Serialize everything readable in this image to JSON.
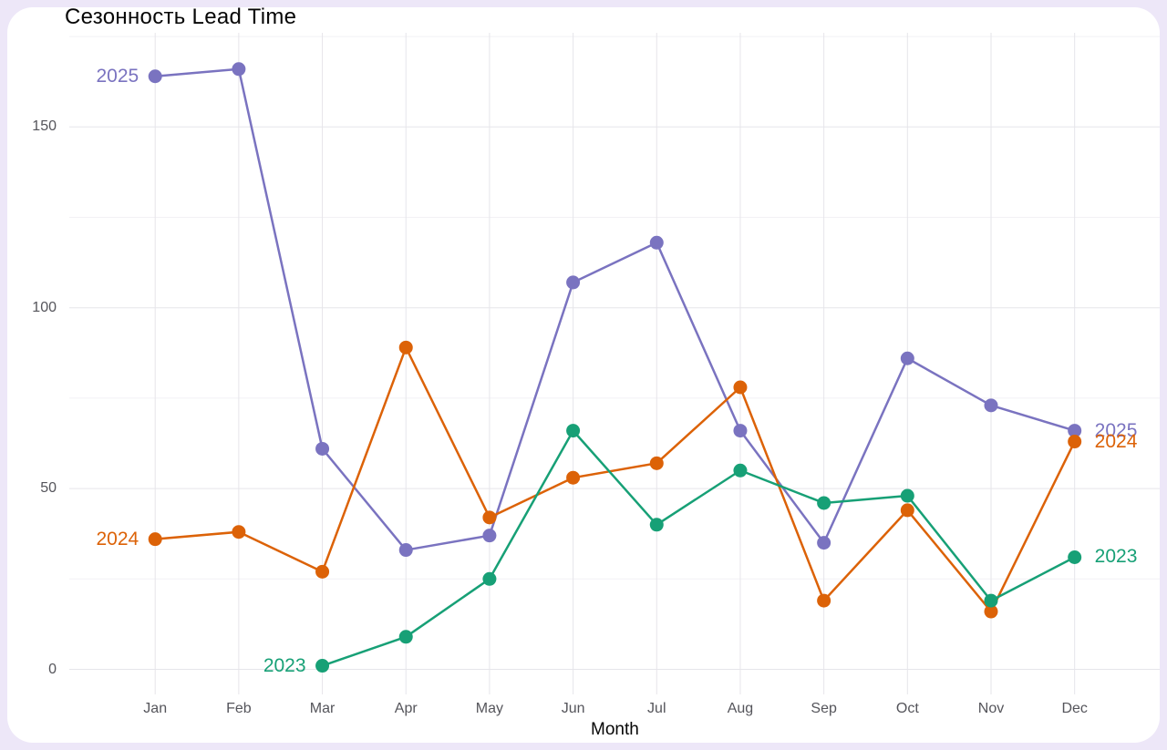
{
  "title": "Сезонность Lead Time",
  "x_axis_title": "Month",
  "colors": {
    "page_background": "#EDE7F8",
    "card_background": "#FFFFFF",
    "grid_major": "#E6E5EA",
    "grid_minor": "#F2F1F5",
    "axis_text": "#55555B",
    "title_text": "#060606"
  },
  "chart_data": {
    "type": "line",
    "title": "Сезонность Lead Time",
    "xlabel": "Month",
    "ylabel": "",
    "x": [
      "Jan",
      "Feb",
      "Mar",
      "Apr",
      "May",
      "Jun",
      "Jul",
      "Aug",
      "Sep",
      "Oct",
      "Nov",
      "Dec"
    ],
    "ylim": [
      0,
      175
    ],
    "y_major_ticks": [
      0,
      50,
      100,
      150
    ],
    "y_minor_gridlines": [
      25,
      75,
      125,
      175
    ],
    "grid": true,
    "legend_position": "line endpoint labels on left and right of each series",
    "series": [
      {
        "name": "2025",
        "color": "#7A73C0",
        "values": [
          164,
          166,
          61,
          33,
          37,
          107,
          118,
          66,
          35,
          86,
          73,
          66
        ]
      },
      {
        "name": "2024",
        "color": "#DC6207",
        "values": [
          36,
          38,
          27,
          89,
          42,
          53,
          57,
          78,
          19,
          44,
          16,
          63
        ]
      },
      {
        "name": "2023",
        "color": "#17A076",
        "values": [
          null,
          null,
          1,
          9,
          25,
          66,
          40,
          55,
          46,
          48,
          19,
          31
        ]
      }
    ]
  }
}
